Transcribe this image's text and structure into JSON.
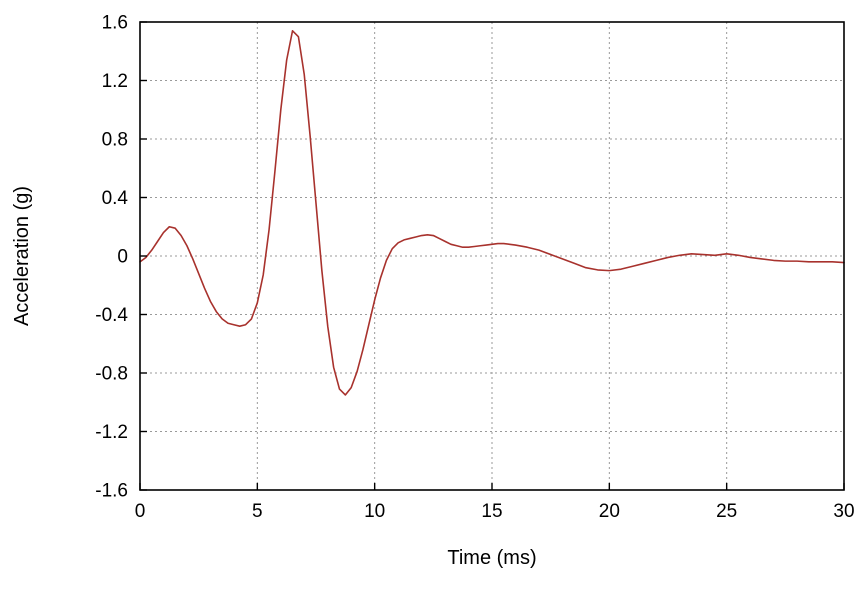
{
  "figure": {
    "background": "#ffffff",
    "border_color": "#000000",
    "grid_color": "#9a9a9a",
    "text_color": "#000000"
  },
  "chart_data": {
    "type": "line",
    "title": "",
    "xlabel": "Time (ms)",
    "ylabel": "Acceleration (g)",
    "xlim": [
      0,
      30
    ],
    "ylim": [
      -1.6,
      1.6
    ],
    "x_ticks": [
      0,
      5,
      10,
      15,
      20,
      25,
      30
    ],
    "x_tick_labels": [
      "0",
      "5",
      "10",
      "15",
      "20",
      "25",
      "30"
    ],
    "y_ticks": [
      -1.6,
      -1.2,
      -0.8,
      -0.4,
      0,
      0.4,
      0.8,
      1.2,
      1.6
    ],
    "y_tick_labels": [
      "-1.6",
      "-1.2",
      "-0.8",
      "-0.4",
      "0",
      "0.4",
      "0.8",
      "1.2",
      "1.6"
    ],
    "grid": "dashed",
    "legend": "none",
    "line_color": "#a8322d",
    "line_width": 1.6,
    "series": [
      {
        "name": "acceleration",
        "x": [
          0,
          0.25,
          0.5,
          0.75,
          1,
          1.25,
          1.5,
          1.75,
          2,
          2.25,
          2.5,
          2.75,
          3,
          3.25,
          3.5,
          3.75,
          4,
          4.25,
          4.5,
          4.75,
          5,
          5.25,
          5.5,
          5.75,
          6,
          6.25,
          6.5,
          6.75,
          7,
          7.25,
          7.5,
          7.75,
          8,
          8.25,
          8.5,
          8.75,
          9,
          9.25,
          9.5,
          9.75,
          10,
          10.25,
          10.5,
          10.75,
          11,
          11.25,
          11.5,
          11.75,
          12,
          12.25,
          12.5,
          12.75,
          13,
          13.25,
          13.5,
          13.75,
          14,
          14.25,
          14.5,
          14.75,
          15,
          15.25,
          15.5,
          15.75,
          16,
          16.5,
          17,
          17.5,
          18,
          18.5,
          19,
          19.5,
          20,
          20.5,
          21,
          21.5,
          22,
          22.5,
          23,
          23.5,
          24,
          24.5,
          25,
          25.5,
          26,
          26.5,
          27,
          27.5,
          28,
          28.5,
          29,
          29.5,
          30
        ],
        "y": [
          -0.04,
          -0.01,
          0.04,
          0.1,
          0.16,
          0.2,
          0.19,
          0.14,
          0.07,
          -0.02,
          -0.12,
          -0.22,
          -0.31,
          -0.38,
          -0.43,
          -0.46,
          -0.47,
          -0.48,
          -0.47,
          -0.43,
          -0.32,
          -0.13,
          0.18,
          0.58,
          1.0,
          1.34,
          1.54,
          1.5,
          1.24,
          0.82,
          0.36,
          -0.1,
          -0.48,
          -0.76,
          -0.91,
          -0.95,
          -0.9,
          -0.79,
          -0.64,
          -0.47,
          -0.3,
          -0.15,
          -0.03,
          0.05,
          0.09,
          0.11,
          0.12,
          0.13,
          0.14,
          0.145,
          0.14,
          0.12,
          0.1,
          0.08,
          0.07,
          0.06,
          0.06,
          0.065,
          0.07,
          0.075,
          0.08,
          0.085,
          0.085,
          0.08,
          0.075,
          0.06,
          0.04,
          0.01,
          -0.02,
          -0.05,
          -0.08,
          -0.095,
          -0.1,
          -0.09,
          -0.07,
          -0.05,
          -0.03,
          -0.01,
          0.005,
          0.015,
          0.01,
          0.005,
          0.015,
          0.005,
          -0.01,
          -0.02,
          -0.03,
          -0.035,
          -0.035,
          -0.04,
          -0.04,
          -0.04,
          -0.045
        ]
      }
    ]
  }
}
